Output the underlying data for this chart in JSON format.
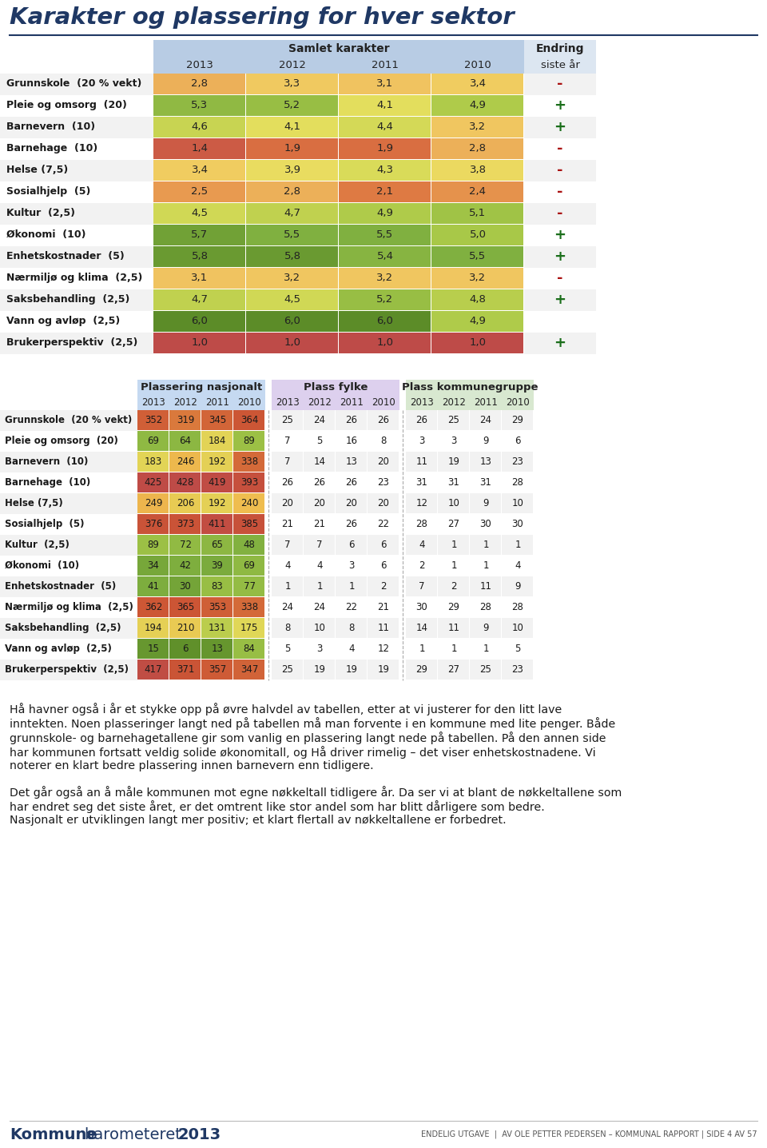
{
  "title": "Karakter og plassering for hver sektor",
  "table1_header": "Samlet karakter",
  "table1_years": [
    "2013",
    "2012",
    "2011",
    "2010"
  ],
  "table1_rows": [
    {
      "label": "Grunnskole  (20 % vekt)",
      "values": [
        2.8,
        3.3,
        3.1,
        3.4
      ],
      "endring": "-"
    },
    {
      "label": "Pleie og omsorg  (20)",
      "values": [
        5.3,
        5.2,
        4.1,
        4.9
      ],
      "endring": "+"
    },
    {
      "label": "Barnevern  (10)",
      "values": [
        4.6,
        4.1,
        4.4,
        3.2
      ],
      "endring": "+"
    },
    {
      "label": "Barnehage  (10)",
      "values": [
        1.4,
        1.9,
        1.9,
        2.8
      ],
      "endring": "-"
    },
    {
      "label": "Helse (7,5)",
      "values": [
        3.4,
        3.9,
        4.3,
        3.8
      ],
      "endring": "-"
    },
    {
      "label": "Sosialhjelp  (5)",
      "values": [
        2.5,
        2.8,
        2.1,
        2.4
      ],
      "endring": "-"
    },
    {
      "label": "Kultur  (2,5)",
      "values": [
        4.5,
        4.7,
        4.9,
        5.1
      ],
      "endring": "-"
    },
    {
      "label": "Økonomi  (10)",
      "values": [
        5.7,
        5.5,
        5.5,
        5.0
      ],
      "endring": "+"
    },
    {
      "label": "Enhetskostnader  (5)",
      "values": [
        5.8,
        5.8,
        5.4,
        5.5
      ],
      "endring": "+"
    },
    {
      "label": "Nærmiljø og klima  (2,5)",
      "values": [
        3.1,
        3.2,
        3.2,
        3.2
      ],
      "endring": "-"
    },
    {
      "label": "Saksbehandling  (2,5)",
      "values": [
        4.7,
        4.5,
        5.2,
        4.8
      ],
      "endring": "+"
    },
    {
      "label": "Vann og avløp  (2,5)",
      "values": [
        6.0,
        6.0,
        6.0,
        4.9
      ],
      "endring": ""
    },
    {
      "label": "Brukerperspektiv  (2,5)",
      "values": [
        1.0,
        1.0,
        1.0,
        1.0
      ],
      "endring": "+"
    }
  ],
  "table2_sections": [
    {
      "header": "Plassering nasjonalt",
      "color": "#c5d9f1"
    },
    {
      "header": "Plass fylke",
      "color": "#ddd0ee"
    },
    {
      "header": "Plass kommunegruppe",
      "color": "#d8e8d0"
    }
  ],
  "table2_years": [
    "2013",
    "2012",
    "2011",
    "2010"
  ],
  "table2_rows": [
    {
      "label": "Grunnskole  (20 % vekt)",
      "nasjonalt": [
        352,
        319,
        345,
        364
      ],
      "fylke": [
        25,
        24,
        26,
        26
      ],
      "kommune": [
        26,
        25,
        24,
        29
      ]
    },
    {
      "label": "Pleie og omsorg  (20)",
      "nasjonalt": [
        69,
        64,
        184,
        89
      ],
      "fylke": [
        7,
        5,
        16,
        8
      ],
      "kommune": [
        3,
        3,
        9,
        6
      ]
    },
    {
      "label": "Barnevern  (10)",
      "nasjonalt": [
        183,
        246,
        192,
        338
      ],
      "fylke": [
        7,
        14,
        13,
        20
      ],
      "kommune": [
        11,
        19,
        13,
        23
      ]
    },
    {
      "label": "Barnehage  (10)",
      "nasjonalt": [
        425,
        428,
        419,
        393
      ],
      "fylke": [
        26,
        26,
        26,
        23
      ],
      "kommune": [
        31,
        31,
        31,
        28
      ]
    },
    {
      "label": "Helse (7,5)",
      "nasjonalt": [
        249,
        206,
        192,
        240
      ],
      "fylke": [
        20,
        20,
        20,
        20
      ],
      "kommune": [
        12,
        10,
        9,
        10
      ]
    },
    {
      "label": "Sosialhjelp  (5)",
      "nasjonalt": [
        376,
        373,
        411,
        385
      ],
      "fylke": [
        21,
        21,
        26,
        22
      ],
      "kommune": [
        28,
        27,
        30,
        30
      ]
    },
    {
      "label": "Kultur  (2,5)",
      "nasjonalt": [
        89,
        72,
        65,
        48
      ],
      "fylke": [
        7,
        7,
        6,
        6
      ],
      "kommune": [
        4,
        1,
        1,
        1
      ]
    },
    {
      "label": "Økonomi  (10)",
      "nasjonalt": [
        34,
        42,
        39,
        69
      ],
      "fylke": [
        4,
        4,
        3,
        6
      ],
      "kommune": [
        2,
        1,
        1,
        4
      ]
    },
    {
      "label": "Enhetskostnader  (5)",
      "nasjonalt": [
        41,
        30,
        83,
        77
      ],
      "fylke": [
        1,
        1,
        1,
        2
      ],
      "kommune": [
        7,
        2,
        11,
        9
      ]
    },
    {
      "label": "Nærmiljø og klima  (2,5)",
      "nasjonalt": [
        362,
        365,
        353,
        338
      ],
      "fylke": [
        24,
        24,
        22,
        21
      ],
      "kommune": [
        30,
        29,
        28,
        28
      ]
    },
    {
      "label": "Saksbehandling  (2,5)",
      "nasjonalt": [
        194,
        210,
        131,
        175
      ],
      "fylke": [
        8,
        10,
        8,
        11
      ],
      "kommune": [
        14,
        11,
        9,
        10
      ]
    },
    {
      "label": "Vann og avløp  (2,5)",
      "nasjonalt": [
        15,
        6,
        13,
        84
      ],
      "fylke": [
        5,
        3,
        4,
        12
      ],
      "kommune": [
        1,
        1,
        1,
        5
      ]
    },
    {
      "label": "Brukerperspektiv  (2,5)",
      "nasjonalt": [
        417,
        371,
        357,
        347
      ],
      "fylke": [
        25,
        19,
        19,
        19
      ],
      "kommune": [
        29,
        27,
        25,
        23
      ]
    }
  ],
  "text1": "Hå havner også i år et stykke opp på øvre halvdel av tabellen, etter at vi justerer for den litt lave inntekten. Noen plasseringer langt ned på tabellen må man forvente i en kommune med lite penger. Både grunnskole- og barnehagetallene gir som vanlig en plassering langt nede på tabellen. På den annen side har kommunen fortsatt veldig solide økonomitall, og Hå driver rimelig – det viser enhetskostnadene. Vi noterer en klart bedre plassering innen barnevern enn tidligere.",
  "text2": "Det går også an å måle kommunen mot egne nøkkeltall tidligere år. Da ser vi at blant de nøkkeltallene som har endret seg det siste året, er det omtrent like stor andel som har blitt dårligere som bedre. Nasjonalt er utviklingen langt mer positiv; et klart flertall av nøkkeltallene er forbedret.",
  "footer_right": "ENDELIG UTGAVE  |  AV OLE PETTER PEDERSEN – KOMMUNAL RAPPORT | SIDE 4 AV 57"
}
